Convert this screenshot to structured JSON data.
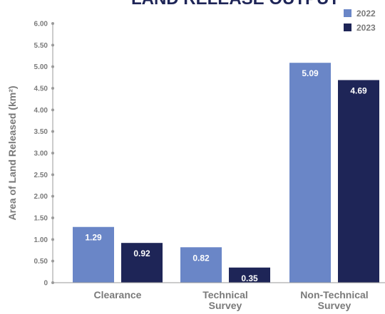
{
  "chart_data": {
    "type": "bar",
    "title": "LAND RELEASE OUTPUT",
    "ylabel": "Area of Land Released (km²)",
    "xlabel": "",
    "categories": [
      [
        "Clearance"
      ],
      [
        "Technical",
        "Survey"
      ],
      [
        "Non-Technical",
        "Survey"
      ]
    ],
    "series": [
      {
        "name": "2022",
        "values": [
          1.29,
          0.82,
          5.09
        ],
        "labels": [
          "1.29",
          "0.82",
          "5.09"
        ],
        "color": "#6a86c7",
        "label_color": "#ffffff"
      },
      {
        "name": "2023",
        "values": [
          0.92,
          0.35,
          4.69
        ],
        "labels": [
          "0.92",
          "0.35",
          "4.69"
        ],
        "color": "#1e2557",
        "label_color": "#ffffff"
      }
    ],
    "ylim": [
      0,
      6
    ],
    "yticks": [
      0,
      0.5,
      1,
      1.5,
      2,
      2.5,
      3,
      3.5,
      4,
      4.5,
      5,
      5.5,
      6
    ],
    "ytick_labels": [
      "0",
      "0.50",
      "1.00",
      "1.50",
      "2.00",
      "2.50",
      "3.00",
      "3.50",
      "4.00",
      "4.50",
      "5.00",
      "5.50",
      "6.00"
    ],
    "grid": false,
    "legend_position": "top-right",
    "colors": {
      "axis": "#9a9a9a",
      "text": "#7a7a7a",
      "title": "#1e2557"
    }
  }
}
